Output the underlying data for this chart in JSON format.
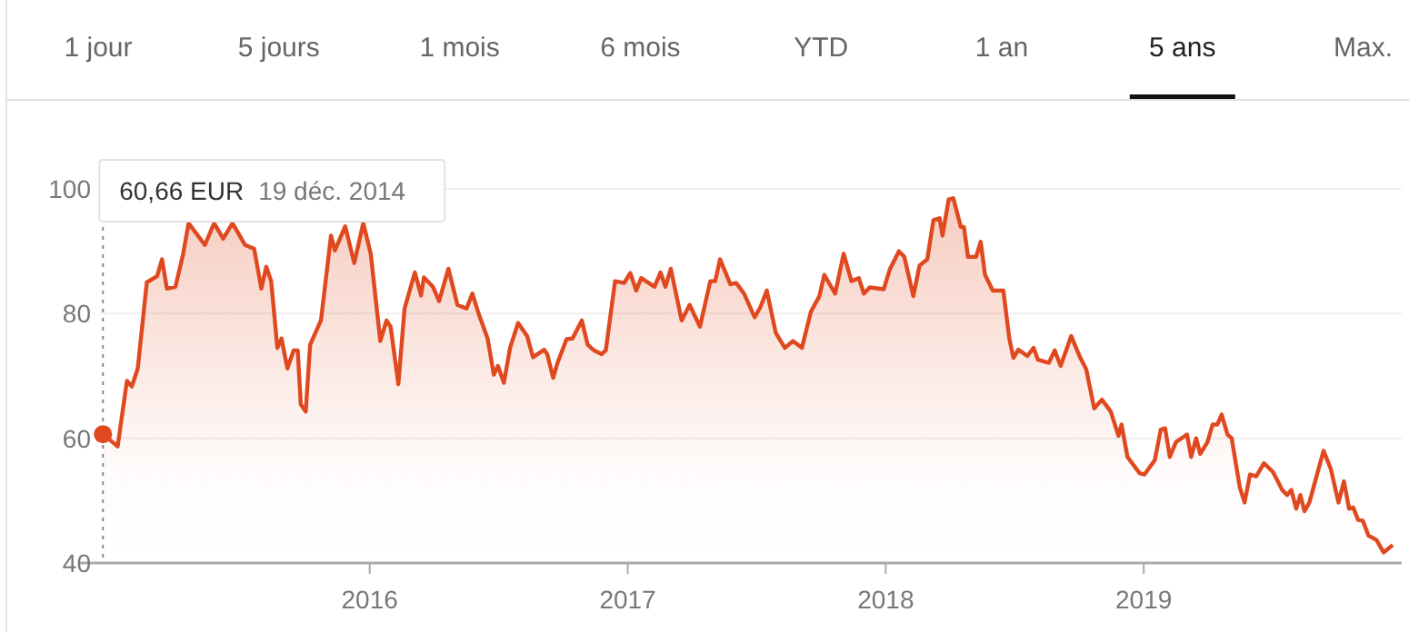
{
  "chart_data": {
    "type": "area",
    "x": [
      2014.966,
      2015.023,
      2015.059,
      2015.078,
      2015.101,
      2015.136,
      2015.176,
      2015.195,
      2015.214,
      2015.247,
      2015.277,
      2015.298,
      2015.361,
      2015.397,
      2015.432,
      2015.468,
      2015.517,
      2015.552,
      2015.58,
      2015.599,
      2015.618,
      2015.642,
      2015.658,
      2015.681,
      2015.705,
      2015.721,
      2015.733,
      2015.752,
      2015.769,
      2015.811,
      2015.85,
      2015.865,
      2015.905,
      2015.94,
      2015.975,
      2016.004,
      2016.041,
      2016.065,
      2016.081,
      2016.111,
      2016.135,
      2016.175,
      2016.199,
      2016.21,
      2016.245,
      2016.269,
      2016.305,
      2016.34,
      2016.375,
      2016.398,
      2016.422,
      2016.457,
      2016.481,
      2016.497,
      2016.52,
      2016.544,
      2016.575,
      2016.61,
      2016.633,
      2016.676,
      2016.688,
      2016.711,
      2016.728,
      2016.763,
      2016.786,
      2016.822,
      2016.845,
      2016.869,
      2016.899,
      2016.915,
      2016.951,
      2016.986,
      2017.01,
      2017.033,
      2017.052,
      2017.104,
      2017.127,
      2017.146,
      2017.167,
      2017.209,
      2017.24,
      2017.28,
      2017.32,
      2017.339,
      2017.358,
      2017.398,
      2017.421,
      2017.451,
      2017.492,
      2017.515,
      2017.539,
      2017.574,
      2017.609,
      2017.64,
      2017.675,
      2017.71,
      2017.743,
      2017.762,
      2017.804,
      2017.837,
      2017.867,
      2017.896,
      2017.915,
      2017.938,
      2017.992,
      2018.016,
      2018.051,
      2018.072,
      2018.107,
      2018.131,
      2018.161,
      2018.185,
      2018.209,
      2018.22,
      2018.244,
      2018.262,
      2018.291,
      2018.303,
      2018.319,
      2018.35,
      2018.368,
      2018.385,
      2018.415,
      2018.456,
      2018.479,
      2018.495,
      2018.514,
      2018.549,
      2018.573,
      2018.59,
      2018.632,
      2018.655,
      2018.678,
      2018.719,
      2018.754,
      2018.777,
      2018.808,
      2018.838,
      2018.872,
      2018.902,
      2018.914,
      2018.937,
      2018.984,
      2019.003,
      2019.043,
      2019.066,
      2019.083,
      2019.101,
      2019.125,
      2019.168,
      2019.184,
      2019.203,
      2019.219,
      2019.247,
      2019.267,
      2019.285,
      2019.302,
      2019.325,
      2019.341,
      2019.372,
      2019.391,
      2019.412,
      2019.436,
      2019.466,
      2019.501,
      2019.537,
      2019.556,
      2019.572,
      2019.591,
      2019.607,
      2019.623,
      2019.642,
      2019.697,
      2019.725,
      2019.755,
      2019.776,
      2019.796,
      2019.812,
      2019.831,
      2019.849,
      2019.871,
      2019.902,
      2019.93,
      2019.965
    ],
    "series": [
      {
        "color": "#e0481f",
        "values": [
          60.66,
          58.7,
          69.2,
          68.3,
          71.2,
          85,
          86,
          88.7,
          84,
          84.3,
          89.6,
          94.5,
          91,
          94.5,
          92,
          94.5,
          91,
          90.4,
          84,
          87.5,
          85.2,
          74.5,
          76,
          71.2,
          74.1,
          74.1,
          65.4,
          64.3,
          75,
          78.9,
          92.5,
          90.1,
          94,
          88.1,
          94.5,
          89.6,
          75.6,
          78.9,
          77.9,
          68.7,
          80.8,
          86.6,
          82.9,
          85.8,
          84.3,
          82,
          87.2,
          81.4,
          80.8,
          83.2,
          80,
          76,
          70.2,
          71.6,
          68.9,
          74.5,
          78.5,
          76.4,
          73,
          74.2,
          73.5,
          69.7,
          72.1,
          75.9,
          76,
          78.9,
          75,
          74.1,
          73.5,
          74.1,
          85.2,
          84.9,
          86.5,
          83.7,
          85.7,
          84.3,
          86.6,
          84.3,
          87.2,
          78.9,
          81.4,
          77.9,
          85.2,
          85.2,
          88.7,
          84.7,
          84.9,
          83.2,
          79.4,
          81.1,
          83.7,
          76.9,
          74.5,
          75.6,
          74.5,
          80.3,
          82.8,
          86.2,
          83.2,
          89.6,
          85.2,
          85.7,
          83.2,
          84.2,
          83.9,
          87.1,
          90,
          89.1,
          82.8,
          87.7,
          88.7,
          95,
          95.3,
          92.5,
          98.3,
          98.5,
          93.9,
          93.9,
          89.1,
          89.1,
          91.5,
          86.2,
          83.7,
          83.7,
          76,
          72.9,
          74.2,
          73.2,
          74.5,
          72.6,
          72.1,
          74.1,
          71.6,
          76.4,
          72.9,
          71.1,
          64.8,
          66.2,
          64.3,
          60.4,
          62.2,
          57,
          54.4,
          54.2,
          56.5,
          61.4,
          61.6,
          57,
          59.4,
          60.6,
          57,
          60,
          57.5,
          59.4,
          62.2,
          62.2,
          63.8,
          60.6,
          60,
          52.2,
          49.7,
          54.2,
          53.9,
          56,
          54.6,
          51.7,
          50.9,
          51.7,
          48.7,
          50.9,
          48.3,
          49.7,
          58,
          55.1,
          49.7,
          53.1,
          48.7,
          48.9,
          46.9,
          46.8,
          44.4,
          43.7,
          41.7,
          42.9
        ]
      }
    ],
    "xlim": [
      2014.87,
      2020.0
    ],
    "xticks": [
      2016,
      2017,
      2018,
      2019
    ],
    "ylim": [
      40,
      100
    ],
    "yticks": [
      40,
      60,
      80,
      100
    ],
    "grid": "y",
    "ref_lines": [
      {
        "axis": "x",
        "value": 2014.966,
        "line_style": "dotted",
        "color": "#888888"
      }
    ],
    "annotations": [
      "1 jour",
      "5 jours",
      "1 mois",
      "6 mois",
      "YTD",
      "1 an",
      "5 ans",
      "Max.",
      "60,66 EUR",
      "19 déc. 2014"
    ]
  }
}
